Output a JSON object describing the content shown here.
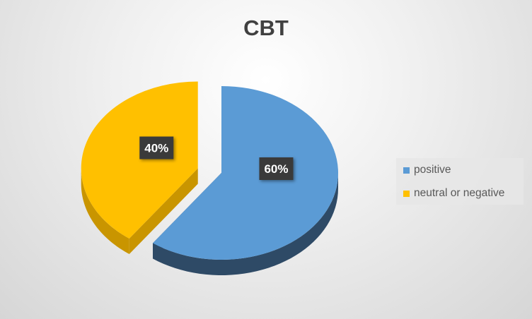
{
  "chart_data": {
    "type": "pie",
    "style": "3d-exploded",
    "title": "CBT",
    "slices": [
      {
        "label": "positive",
        "value": 60,
        "data_label": "60%",
        "color": "#5B9BD5",
        "side_color": "#2E4A66"
      },
      {
        "label": "neutral or negative",
        "value": 40,
        "data_label": "40%",
        "color": "#FFC000",
        "side_color": "#C99500"
      }
    ],
    "legend": {
      "placement": "right"
    }
  }
}
